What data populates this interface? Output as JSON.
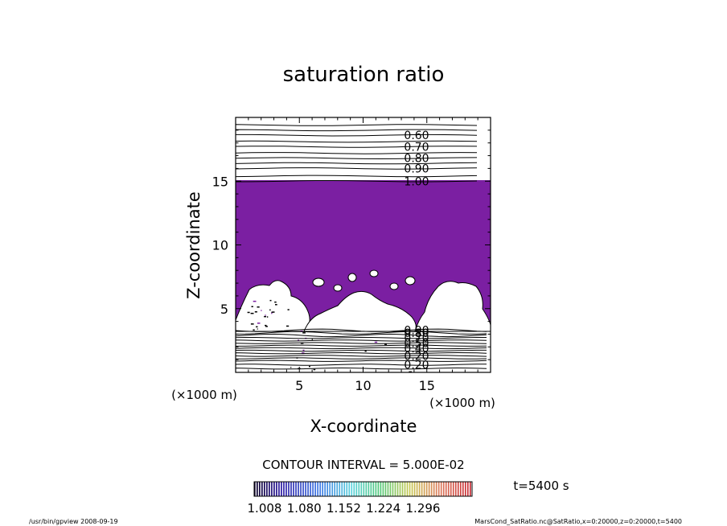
{
  "chart_data": {
    "type": "contour",
    "title": "saturation ratio",
    "xlabel": "X-coordinate",
    "ylabel": "Z-coordinate",
    "x_unit": "(×1000 m)",
    "z_unit": "(×1000 m)",
    "xlim": [
      0,
      20
    ],
    "ylim": [
      0,
      20
    ],
    "x_ticks": [
      5,
      10,
      15
    ],
    "y_ticks": [
      5,
      10,
      15
    ],
    "fill_color": "#7b1fa2",
    "upper_contours": [
      {
        "level": 1.0,
        "z": 15.0,
        "label": "1.00"
      },
      {
        "level": 0.95,
        "z": 15.4,
        "label": ""
      },
      {
        "level": 0.9,
        "z": 16.0,
        "label": "0.90"
      },
      {
        "level": 0.85,
        "z": 16.4,
        "label": ""
      },
      {
        "level": 0.8,
        "z": 16.8,
        "label": "0.80"
      },
      {
        "level": 0.75,
        "z": 17.2,
        "label": ""
      },
      {
        "level": 0.7,
        "z": 17.7,
        "label": "0.70"
      },
      {
        "level": 0.65,
        "z": 18.1,
        "label": ""
      },
      {
        "level": 0.6,
        "z": 18.6,
        "label": "0.60"
      },
      {
        "level": 0.55,
        "z": 19.0,
        "label": ""
      },
      {
        "level": 0.5,
        "z": 19.4,
        "label": ""
      }
    ],
    "lower_contours": [
      {
        "z": 3.3,
        "label": "0.90"
      },
      {
        "z": 3.1,
        "label": "0.80"
      },
      {
        "z": 2.9,
        "label": ""
      },
      {
        "z": 2.7,
        "label": "0.70"
      },
      {
        "z": 2.5,
        "label": ""
      },
      {
        "z": 2.3,
        "label": "0.50"
      },
      {
        "z": 2.1,
        "label": ""
      },
      {
        "z": 1.9,
        "label": "0.40"
      },
      {
        "z": 1.7,
        "label": ""
      },
      {
        "z": 1.5,
        "label": ""
      },
      {
        "z": 1.3,
        "label": "0.20"
      },
      {
        "z": 1.1,
        "label": ""
      },
      {
        "z": 0.9,
        "label": ""
      },
      {
        "z": 0.6,
        "label": "0.20"
      },
      {
        "z": 0.3,
        "label": ""
      }
    ],
    "contour_interval_text": "CONTOUR INTERVAL = 5.000E-02",
    "colorbar": {
      "ticks": [
        "1.008",
        "1.080",
        "1.152",
        "1.224",
        "1.296"
      ]
    },
    "time_label": "t=5400 s"
  },
  "footer": {
    "left": "/usr/bin/gpview   2008-09-19",
    "right": "MarsCond_SatRatio.nc@SatRatio,x=0:20000,z=0:20000,t=5400"
  }
}
